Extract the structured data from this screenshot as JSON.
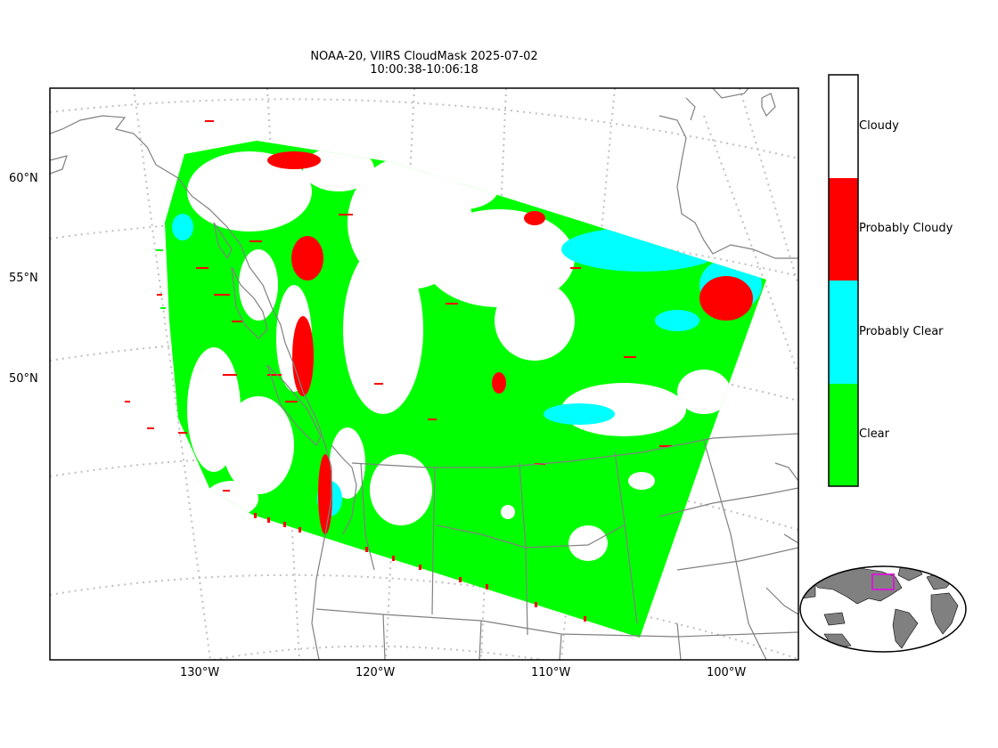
{
  "title": {
    "line1": "NOAA-20, VIIRS CloudMask 2025-07-02",
    "line2": "10:00:38-10:06:18"
  },
  "lat_labels": [
    "60°N",
    "55°N",
    "50°N"
  ],
  "lon_labels": [
    "130°W",
    "120°W",
    "110°W",
    "100°W"
  ],
  "legend": {
    "items": [
      {
        "label": "Cloudy",
        "color": "#ffffff"
      },
      {
        "label": "Probably Cloudy",
        "color": "#ff0000"
      },
      {
        "label": "Probably Clear",
        "color": "#00ffff"
      },
      {
        "label": "Clear",
        "color": "#00ff00"
      }
    ]
  },
  "colors": {
    "coast": "#808080",
    "graticule": "#bfbfbf",
    "inset_box": "#d020d0",
    "inset_land": "#808080"
  }
}
